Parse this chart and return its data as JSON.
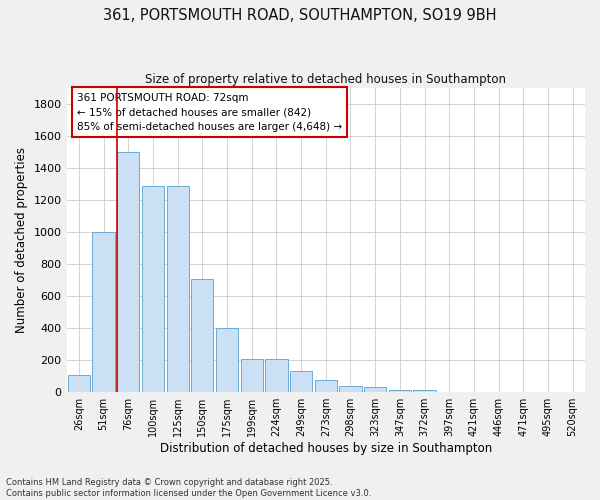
{
  "title_line1": "361, PORTSMOUTH ROAD, SOUTHAMPTON, SO19 9BH",
  "title_line2": "Size of property relative to detached houses in Southampton",
  "xlabel": "Distribution of detached houses by size in Southampton",
  "ylabel": "Number of detached properties",
  "categories": [
    "26sqm",
    "51sqm",
    "76sqm",
    "100sqm",
    "125sqm",
    "150sqm",
    "175sqm",
    "199sqm",
    "224sqm",
    "249sqm",
    "273sqm",
    "298sqm",
    "323sqm",
    "347sqm",
    "372sqm",
    "397sqm",
    "421sqm",
    "446sqm",
    "471sqm",
    "495sqm",
    "520sqm"
  ],
  "values": [
    110,
    1000,
    1500,
    1290,
    1290,
    705,
    400,
    210,
    210,
    130,
    75,
    40,
    30,
    15,
    15,
    0,
    0,
    0,
    0,
    0,
    0
  ],
  "bar_color": "#cce0f5",
  "bar_edge_color": "#6aaad4",
  "grid_color": "#cccccc",
  "bg_color": "#ffffff",
  "fig_bg_color": "#f0f0f0",
  "red_line_index": 2,
  "annotation_text_line1": "361 PORTSMOUTH ROAD: 72sqm",
  "annotation_text_line2": "← 15% of detached houses are smaller (842)",
  "annotation_text_line3": "85% of semi-detached houses are larger (4,648) →",
  "annotation_box_facecolor": "#ffffff",
  "annotation_box_edgecolor": "#cc0000",
  "red_line_color": "#cc0000",
  "ylim_max": 1900,
  "yticks": [
    0,
    200,
    400,
    600,
    800,
    1000,
    1200,
    1400,
    1600,
    1800
  ],
  "footnote_line1": "Contains HM Land Registry data © Crown copyright and database right 2025.",
  "footnote_line2": "Contains public sector information licensed under the Open Government Licence v3.0."
}
